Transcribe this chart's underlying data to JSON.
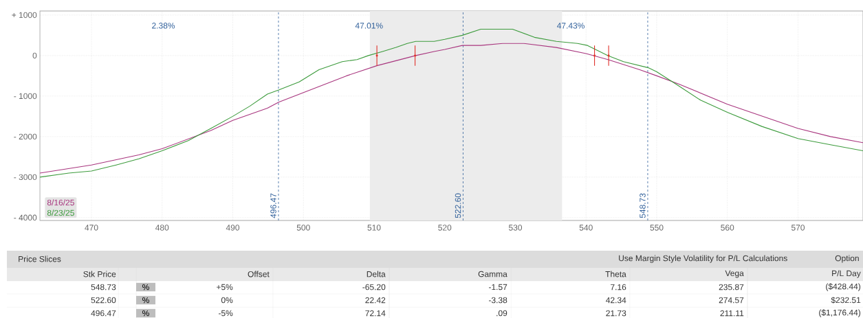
{
  "chart_data": {
    "type": "line",
    "xlim": [
      462.7,
      579.2
    ],
    "xticks": [
      470,
      480,
      490,
      500,
      510,
      520,
      530,
      540,
      550,
      560,
      570
    ],
    "ylim": [
      -4070,
      1100
    ],
    "yticks": [
      {
        "value": -4000,
        "label": "- 4000"
      },
      {
        "value": -3000,
        "label": "- 3000"
      },
      {
        "value": -2000,
        "label": "- 2000"
      },
      {
        "value": -1000,
        "label": "- 1000"
      },
      {
        "value": 0,
        "label": "0"
      },
      {
        "value": 1000,
        "label": "+ 1000"
      }
    ],
    "grid": true,
    "legend": "bottom left",
    "series": [
      {
        "name": "8/16/25",
        "color": "#a8357e",
        "x": [
          462.7,
          470,
          476.7,
          480,
          486.9,
          490,
          494.9,
          496.5,
          500.2,
          506.1,
          510.4,
          515.9,
          518.5,
          520,
          522.5,
          525.1,
          528.2,
          531.2,
          535.8,
          540,
          543.1,
          547.6,
          550,
          553.1,
          560,
          570,
          574.6,
          579.2
        ],
        "values": [
          -2900,
          -2700,
          -2450,
          -2300,
          -1850,
          -1600,
          -1300,
          -1150,
          -900,
          -500,
          -250,
          0,
          100,
          150,
          250,
          250,
          300,
          300,
          200,
          50,
          -100,
          -350,
          -500,
          -700,
          -1200,
          -1800,
          -2000,
          -2150
        ]
      },
      {
        "name": "8/23/25",
        "color": "#3c9b3c",
        "x": [
          462.7,
          466.8,
          470,
          473.5,
          476.7,
          480,
          483.7,
          486.9,
          490,
          492.4,
          494.9,
          496.5,
          499.4,
          502.2,
          505.5,
          507.6,
          509.2,
          511.2,
          513.1,
          514.7,
          515.9,
          518.5,
          520,
          522.5,
          525.1,
          526.5,
          528.4,
          529.6,
          532.7,
          535.8,
          538.8,
          540.2,
          543.1,
          545.3,
          548.8,
          550,
          552.7,
          556.2,
          560,
          564.9,
          570,
          574.6,
          579.2
        ],
        "values": [
          -3000,
          -2900,
          -2850,
          -2700,
          -2550,
          -2350,
          -2100,
          -1800,
          -1500,
          -1250,
          -950,
          -850,
          -650,
          -350,
          -150,
          -100,
          0,
          100,
          200,
          300,
          350,
          350,
          400,
          500,
          650,
          650,
          650,
          650,
          450,
          350,
          300,
          250,
          0,
          -150,
          -300,
          -400,
          -700,
          -1100,
          -1400,
          -1750,
          -2050,
          -2200,
          -2350
        ]
      },
      {
        "type": "scatter",
        "marker": "circle",
        "color": "#e0302a",
        "x": [
          510.4,
          515.8,
          541.2,
          543.2
        ],
        "values": [
          0,
          0,
          0,
          0
        ],
        "errors": [
          250,
          250,
          250,
          250
        ]
      }
    ],
    "bands": [
      {
        "axis": "x",
        "from": 509.4,
        "to": 536.6,
        "color": "#ececec"
      }
    ],
    "ref_lines": [
      {
        "axis": "x",
        "value": 496.47,
        "label": "496.47",
        "color": "#2f5f9a",
        "line_style": "dashed"
      },
      {
        "axis": "x",
        "value": 522.6,
        "label": "522.60",
        "color": "#2f5f9a",
        "line_style": "dashed"
      },
      {
        "axis": "x",
        "value": 548.73,
        "label": "548.73",
        "color": "#2f5f9a",
        "line_style": "dashed"
      }
    ],
    "annotations": [
      "2.38%",
      "47.01%",
      "47.43%",
      "Price Slices",
      "Use Margin Style Volatility for P/L Calculations",
      "Option",
      "Stk Price",
      "Offset",
      "Delta",
      "Gamma",
      "Theta",
      "Vega",
      "P/L Day",
      "548.73",
      "%",
      "+5%",
      "-65.20",
      "-1.57",
      "7.16",
      "235.87",
      "($428.44)",
      "522.60",
      "%",
      "0%",
      "22.42",
      "-3.38",
      "42.34",
      "274.57",
      "$232.51",
      "496.47",
      "%",
      "-5%",
      "72.14",
      ".09",
      "21.73",
      "211.11",
      "($1,176.44)"
    ]
  }
}
